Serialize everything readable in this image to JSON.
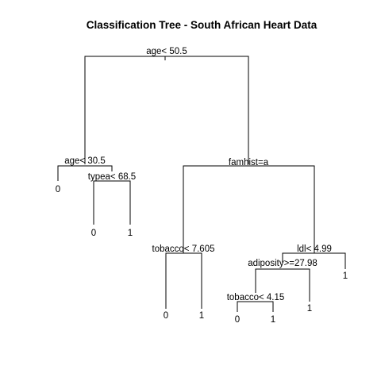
{
  "title": "Classification Tree  - South African Heart Data",
  "tree": {
    "splits": {
      "root": "age< 50.5",
      "age30": "age< 30.5",
      "typea": "typea< 68.5",
      "famhist": "famhist=a",
      "tobacco7": "tobacco< 7.605",
      "ldl": "ldl< 4.99",
      "adiposity": "adiposity>=27.98",
      "tobacco4": "tobacco< 4.15"
    },
    "leaves": {
      "age30_left": "0",
      "typea_left": "0",
      "typea_right": "1",
      "tobacco7_left": "0",
      "tobacco7_right": "1",
      "tobacco4_left": "0",
      "tobacco4_right": "1",
      "adiposity_right": "1",
      "ldl_right": "1"
    }
  }
}
